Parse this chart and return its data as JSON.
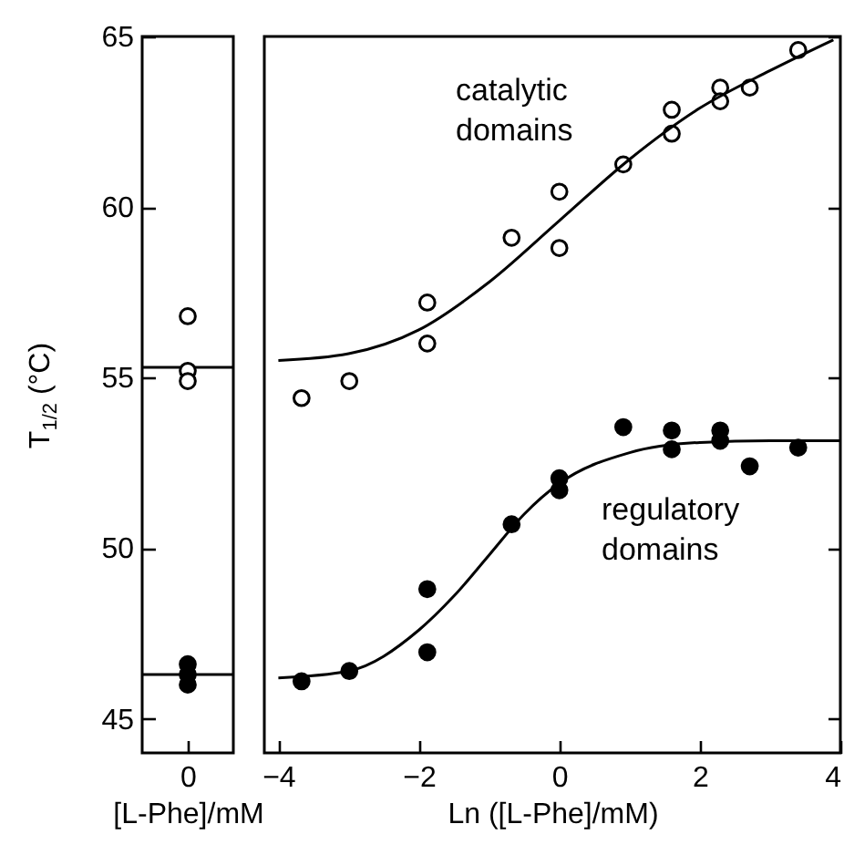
{
  "chart_data": [
    {
      "type": "scatter",
      "xlabel": "[L-Phe]/mM",
      "ylabel": "T$_{1/2}$ (°C)",
      "categories": [
        "0"
      ],
      "ylim": [
        44,
        65
      ],
      "yticks": [
        45,
        50,
        55,
        60,
        65
      ],
      "grid": false,
      "ref_lines": [
        {
          "axis": "y",
          "value": 55.3,
          "color": "#000000"
        },
        {
          "axis": "y",
          "value": 46.3,
          "color": "#000000"
        }
      ],
      "series": [
        {
          "color": "#ffffff",
          "marker": "circle",
          "x": [
            "0",
            "0",
            "0"
          ],
          "values": [
            56.8,
            55.2,
            54.9
          ]
        },
        {
          "color": "#000000",
          "marker": "circle",
          "x": [
            "0",
            "0",
            "0"
          ],
          "values": [
            46.6,
            46.3,
            46.0
          ]
        }
      ]
    },
    {
      "type": "scatter",
      "xlabel": "Ln ([L-Phe]/mM)",
      "xlim": [
        -4.2,
        4
      ],
      "xticks": [
        -4,
        -2,
        0,
        2,
        4
      ],
      "ylim": [
        44,
        65
      ],
      "yticks": [
        45,
        50,
        55,
        60,
        65
      ],
      "tick_labels": "x",
      "grid": false,
      "annotations": [
        "catalytic domains",
        "regulatory domains"
      ],
      "series": [
        {
          "color": "#ffffff",
          "marker": "circle",
          "x": [
            -3.67,
            -2.99,
            -1.88,
            -1.88,
            -0.68,
            0,
            0,
            0.91,
            1.6,
            1.6,
            2.29,
            2.29,
            2.71,
            3.4
          ],
          "values": [
            54.4,
            54.9,
            57.2,
            56.0,
            59.1,
            60.45,
            58.8,
            61.25,
            62.85,
            62.15,
            63.5,
            63.1,
            63.5,
            64.6
          ]
        },
        {
          "type": "line",
          "color": "#000000",
          "x": [
            -4,
            -3,
            -2,
            -1,
            0,
            1,
            2,
            3,
            3.9
          ],
          "values": [
            55.5,
            55.7,
            56.4,
            57.8,
            59.6,
            61.4,
            62.9,
            64.0,
            64.9
          ]
        },
        {
          "color": "#000000",
          "marker": "circle",
          "x": [
            -3.67,
            -2.99,
            -1.88,
            -1.88,
            -0.68,
            0,
            0,
            0.91,
            1.6,
            1.6,
            2.29,
            2.29,
            2.71,
            3.4
          ],
          "values": [
            46.1,
            46.4,
            48.8,
            46.95,
            50.7,
            52.05,
            51.7,
            53.55,
            53.45,
            52.9,
            53.45,
            53.15,
            52.4,
            52.95
          ]
        },
        {
          "type": "line",
          "color": "#000000",
          "x": [
            -4,
            -3,
            -2,
            -1.5,
            -1,
            -0.5,
            0,
            1,
            2,
            3,
            4
          ],
          "values": [
            46.2,
            46.4,
            47.6,
            48.6,
            49.8,
            51.0,
            51.9,
            52.8,
            53.1,
            53.15,
            53.15
          ]
        }
      ]
    }
  ]
}
